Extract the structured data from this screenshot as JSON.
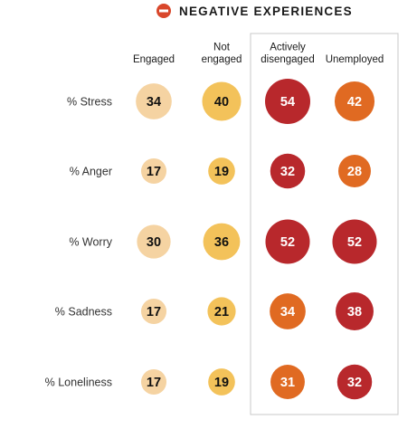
{
  "chart_data": {
    "type": "bubble-table",
    "title": "NEGATIVE EXPERIENCES",
    "title_icon": "minus-circle-icon",
    "columns": [
      {
        "label_lines": [
          "Engaged"
        ],
        "color": "#f5d3a2",
        "text_color": "#111111"
      },
      {
        "label_lines": [
          "Not",
          "engaged"
        ],
        "color": "#f3c25a",
        "text_color": "#111111"
      },
      {
        "label_lines": [
          "Actively",
          "disengaged"
        ],
        "color": null,
        "text_color": "#ffffff"
      },
      {
        "label_lines": [
          "Unemployed"
        ],
        "color": null,
        "text_color": "#ffffff"
      }
    ],
    "highlight_colors": {
      "dark": "#b8282c",
      "orange": "#e06a22"
    },
    "highlight_columns": [
      2,
      3
    ],
    "rows": [
      {
        "label": "% Stress",
        "values": [
          34,
          40,
          54,
          42
        ],
        "tones": [
          null,
          null,
          "dark",
          "orange"
        ]
      },
      {
        "label": "% Anger",
        "values": [
          17,
          19,
          32,
          28
        ],
        "tones": [
          null,
          null,
          "dark",
          "orange"
        ]
      },
      {
        "label": "% Worry",
        "values": [
          30,
          36,
          52,
          52
        ],
        "tones": [
          null,
          null,
          "dark",
          "dark"
        ]
      },
      {
        "label": "% Sadness",
        "values": [
          17,
          21,
          34,
          38
        ],
        "tones": [
          null,
          null,
          "orange",
          "dark"
        ]
      },
      {
        "label": "% Loneliness",
        "values": [
          17,
          19,
          31,
          32
        ],
        "tones": [
          null,
          null,
          "orange",
          "dark"
        ]
      }
    ],
    "title_icon_color": "#d9472b"
  }
}
